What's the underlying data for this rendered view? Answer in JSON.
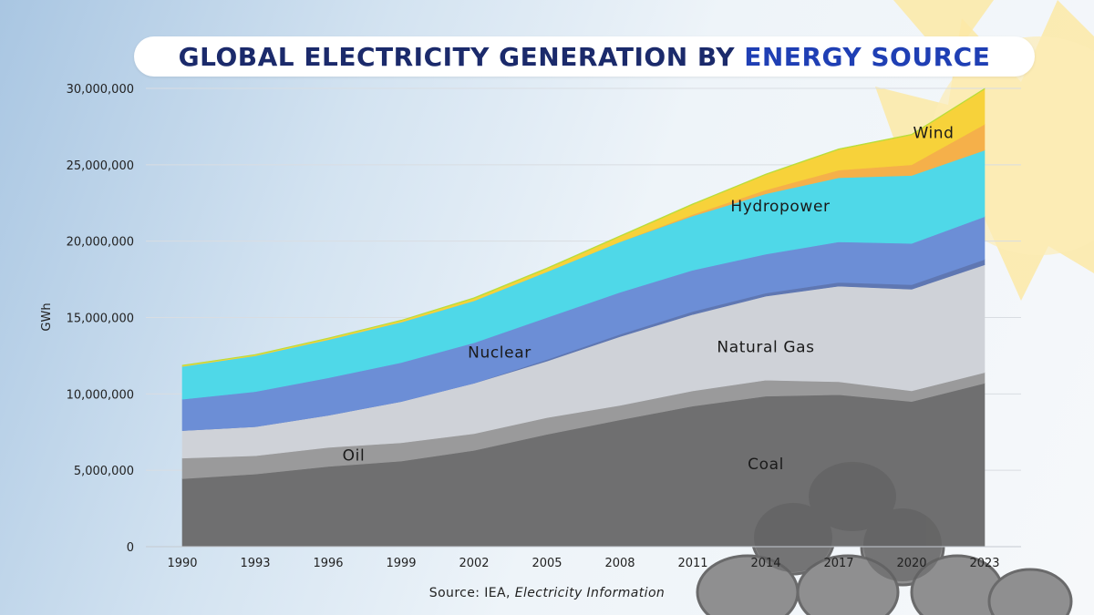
{
  "header": {
    "title_part1": "GLOBAL ELECTRICITY GENERATION BY ",
    "title_part2": "ENERGY SOURCE"
  },
  "footer": {
    "source_prefix": "Source: IEA, ",
    "source_italic": "Electricity Information"
  },
  "chart_data": {
    "type": "area",
    "stacked": true,
    "title": "GLOBAL ELECTRICITY GENERATION BY ENERGY SOURCE",
    "ylabel": "GWh",
    "xlabel": "",
    "ylim": [
      0,
      30000000
    ],
    "y_ticks": [
      0,
      5000000,
      10000000,
      15000000,
      20000000,
      25000000,
      30000000
    ],
    "y_tick_labels": [
      "0",
      "5,000,000",
      "10,000,000",
      "15,000,000",
      "20,000,000",
      "25,000,000",
      "30,000,000"
    ],
    "x": [
      "1990",
      "1993",
      "1996",
      "1999",
      "2002",
      "2005",
      "2008",
      "2011",
      "2014",
      "2017",
      "2020",
      "2023"
    ],
    "grid": true,
    "legend": "inline labels",
    "series": [
      {
        "name": "Coal",
        "color": "#6f6f70",
        "values": [
          4450000,
          4750000,
          5250000,
          5600000,
          6300000,
          7350000,
          8300000,
          9200000,
          9850000,
          9950000,
          9500000,
          10700000
        ]
      },
      {
        "name": "Oil",
        "color": "#9a9a9b",
        "values": [
          1350000,
          1200000,
          1250000,
          1200000,
          1100000,
          1100000,
          950000,
          1000000,
          1050000,
          850000,
          700000,
          700000
        ]
      },
      {
        "name": "Natural Gas",
        "color": "#cfd2d8",
        "values": [
          1800000,
          1900000,
          2100000,
          2700000,
          3300000,
          3700000,
          4500000,
          5000000,
          5500000,
          6250000,
          6650000,
          7050000
        ]
      },
      {
        "name": "",
        "color": "#5f77b2",
        "values": [
          0,
          0,
          0,
          0,
          0,
          100000,
          150000,
          200000,
          200000,
          250000,
          300000,
          350000
        ]
      },
      {
        "name": "Nuclear",
        "color": "#6c8ed6",
        "values": [
          2050000,
          2300000,
          2450000,
          2550000,
          2650000,
          2750000,
          2750000,
          2700000,
          2550000,
          2650000,
          2700000,
          2800000
        ]
      },
      {
        "name": "Hydropower",
        "color": "#4fd8e8",
        "values": [
          2150000,
          2350000,
          2500000,
          2650000,
          2750000,
          3000000,
          3300000,
          3550000,
          3950000,
          4200000,
          4450000,
          4350000
        ]
      },
      {
        "name": "",
        "color": "#f5b04a",
        "values": [
          0,
          0,
          0,
          0,
          0,
          0,
          0,
          100000,
          250000,
          500000,
          700000,
          1700000
        ]
      },
      {
        "name": "Wind",
        "color": "#f7d23a",
        "values": [
          50000,
          50000,
          80000,
          100000,
          150000,
          200000,
          350000,
          650000,
          1000000,
          1350000,
          1950000,
          2300000
        ]
      },
      {
        "name": "",
        "color": "#b9dd3a",
        "values": [
          30000,
          30000,
          30000,
          30000,
          50000,
          50000,
          50000,
          50000,
          50000,
          50000,
          50000,
          50000
        ]
      }
    ]
  }
}
